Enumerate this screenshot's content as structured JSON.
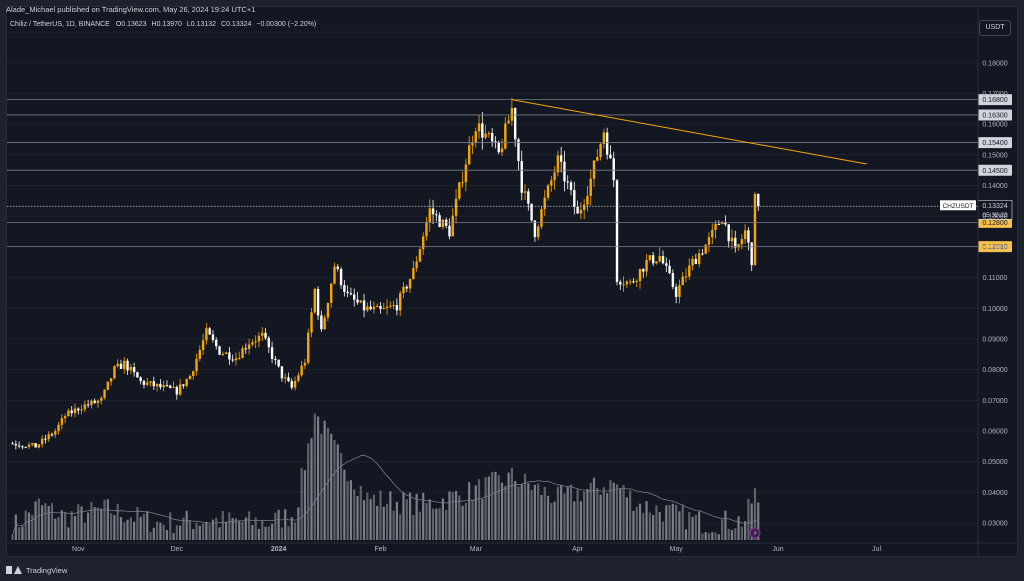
{
  "header": {
    "published_line": "Alade_Michael published on TradingView.com, May 26, 2024 19:24 UTC+1"
  },
  "legend": {
    "symbol_line": "Chiliz / TetherUS, 1D, BINANCE",
    "open_label": "O",
    "open": "0.13623",
    "high_label": "H",
    "high": "0.13970",
    "low_label": "L",
    "low": "0.13132",
    "close_label": "C",
    "close": "0.13324",
    "change": "−0.00300 (−2.20%)"
  },
  "currency_button": "USDT",
  "footer": {
    "brand": "TradingView"
  },
  "colors": {
    "background": "#131722",
    "up_candle": "#f7a600",
    "down_candle": "#ffffff",
    "trendline": "#f7a600",
    "level_line": "#787b86",
    "volume_up": "#9e9e9e",
    "volume_down": "#d1d4dc",
    "volume_ma": "#787b86"
  },
  "chart_data": {
    "type": "candlestick",
    "symbol": "CHZUSDT",
    "timeframe": "1D",
    "y_range": [
      0.0245,
      0.1985
    ],
    "y_ticks": [
      "0.19000",
      "0.18000",
      "0.17000",
      "0.16000",
      "0.15000",
      "0.14000",
      "0.13000",
      "0.12000",
      "0.11000",
      "0.10000",
      "0.09000",
      "0.08000",
      "0.07000",
      "0.06000",
      "0.05000",
      "0.04000",
      "0.03000"
    ],
    "x_ticks": [
      "Nov",
      "Dec",
      "2024",
      "Feb",
      "Mar",
      "Apr",
      "May",
      "Jun",
      "Jul"
    ],
    "horizontal_levels": [
      {
        "value": 0.168,
        "label": "0.16800"
      },
      {
        "value": 0.163,
        "label": "0.16300"
      },
      {
        "value": 0.154,
        "label": "0.15400"
      },
      {
        "value": 0.145,
        "label": "0.14500"
      },
      {
        "value": 0.128,
        "label": "0.12800"
      },
      {
        "value": 0.1201,
        "label": "0.12010"
      }
    ],
    "current_price": {
      "symbol_label": "CHZUSDT",
      "value": "0.13324",
      "countdown": "05:35:23"
    },
    "trendline": {
      "from": {
        "date": "2024-03-12",
        "price": 0.168
      },
      "to": {
        "date": "2024-06-28",
        "price": 0.147
      }
    },
    "series": [
      {
        "name": "price",
        "anchors": [
          [
            "2023-10-12",
            0.056
          ],
          [
            "2023-10-19",
            0.055
          ],
          [
            "2023-10-25",
            0.06
          ],
          [
            "2023-10-28",
            0.065
          ],
          [
            "2023-11-02",
            0.068
          ],
          [
            "2023-11-08",
            0.07
          ],
          [
            "2023-11-12",
            0.08
          ],
          [
            "2023-11-15",
            0.082
          ],
          [
            "2023-11-20",
            0.076
          ],
          [
            "2023-11-27",
            0.074
          ],
          [
            "2023-12-01",
            0.073
          ],
          [
            "2023-12-05",
            0.078
          ],
          [
            "2023-12-10",
            0.092
          ],
          [
            "2023-12-14",
            0.086
          ],
          [
            "2023-12-19",
            0.084
          ],
          [
            "2023-12-23",
            0.089
          ],
          [
            "2023-12-27",
            0.091
          ],
          [
            "2024-01-02",
            0.078
          ],
          [
            "2024-01-05",
            0.074
          ],
          [
            "2024-01-09",
            0.083
          ],
          [
            "2024-01-12",
            0.106
          ],
          [
            "2024-01-14",
            0.092
          ],
          [
            "2024-01-18",
            0.114
          ],
          [
            "2024-01-22",
            0.104
          ],
          [
            "2024-01-27",
            0.1
          ],
          [
            "2024-02-01",
            0.099
          ],
          [
            "2024-02-06",
            0.101
          ],
          [
            "2024-02-11",
            0.112
          ],
          [
            "2024-02-16",
            0.132
          ],
          [
            "2024-02-22",
            0.125
          ],
          [
            "2024-02-27",
            0.148
          ],
          [
            "2024-03-01",
            0.16
          ],
          [
            "2024-03-05",
            0.155
          ],
          [
            "2024-03-08",
            0.15
          ],
          [
            "2024-03-12",
            0.165
          ],
          [
            "2024-03-15",
            0.14
          ],
          [
            "2024-03-19",
            0.125
          ],
          [
            "2024-03-22",
            0.135
          ],
          [
            "2024-03-26",
            0.148
          ],
          [
            "2024-03-29",
            0.14
          ],
          [
            "2024-04-01",
            0.13
          ],
          [
            "2024-04-05",
            0.142
          ],
          [
            "2024-04-09",
            0.158
          ],
          [
            "2024-04-12",
            0.142
          ],
          [
            "2024-04-13",
            0.11
          ],
          [
            "2024-04-17",
            0.108
          ],
          [
            "2024-04-22",
            0.115
          ],
          [
            "2024-04-26",
            0.117
          ],
          [
            "2024-05-01",
            0.105
          ],
          [
            "2024-05-06",
            0.115
          ],
          [
            "2024-05-11",
            0.122
          ],
          [
            "2024-05-15",
            0.13
          ],
          [
            "2024-05-19",
            0.118
          ],
          [
            "2024-05-22",
            0.125
          ],
          [
            "2024-05-24",
            0.116
          ],
          [
            "2024-05-25",
            0.135
          ],
          [
            "2024-05-26",
            0.1332
          ]
        ]
      },
      {
        "name": "volume",
        "anchors": [
          [
            "2023-10-12",
            0.0285
          ],
          [
            "2023-10-20",
            0.036
          ],
          [
            "2023-10-28",
            0.032
          ],
          [
            "2023-11-10",
            0.0345
          ],
          [
            "2023-11-25",
            0.03
          ],
          [
            "2023-12-10",
            0.031
          ],
          [
            "2023-12-28",
            0.03
          ],
          [
            "2024-01-06",
            0.033
          ],
          [
            "2024-01-12",
            0.066
          ],
          [
            "2024-01-18",
            0.054
          ],
          [
            "2024-01-28",
            0.038
          ],
          [
            "2024-02-15",
            0.036
          ],
          [
            "2024-02-28",
            0.04
          ],
          [
            "2024-03-12",
            0.045
          ],
          [
            "2024-03-26",
            0.038
          ],
          [
            "2024-04-12",
            0.043
          ],
          [
            "2024-04-20",
            0.036
          ],
          [
            "2024-05-10",
            0.03
          ],
          [
            "2024-05-22",
            0.031
          ],
          [
            "2024-05-25",
            0.04
          ],
          [
            "2024-05-26",
            0.0345
          ]
        ]
      }
    ]
  }
}
